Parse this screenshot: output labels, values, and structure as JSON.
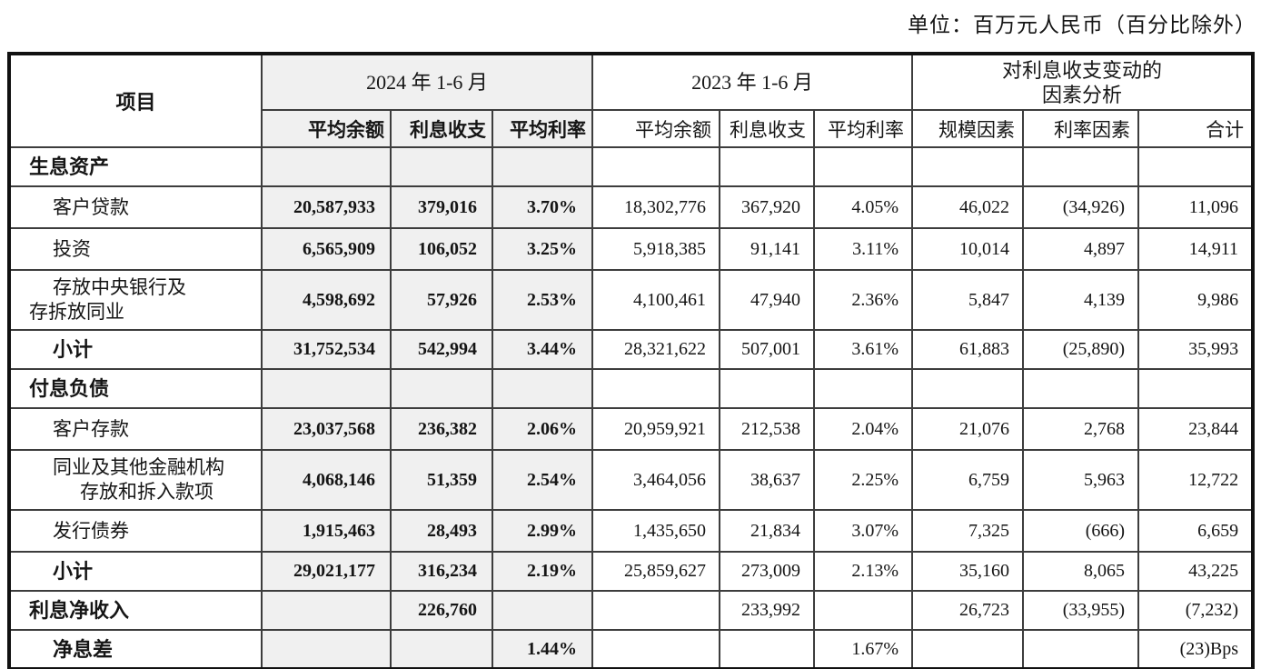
{
  "unit_note": "单位：百万元人民币（百分比除外）",
  "colors": {
    "band_gray": "#f0f0f0",
    "border": "#3d3d3d",
    "outer_border": "#111111"
  },
  "table": {
    "header": {
      "item_label": "项目",
      "groups": [
        {
          "label": "2024 年 1-6 月",
          "cols": [
            "平均余额",
            "利息收支",
            "平均利率"
          ]
        },
        {
          "label": "2023 年 1-6 月",
          "cols": [
            "平均余额",
            "利息收支",
            "平均利率"
          ]
        },
        {
          "label": "对利息收支变动的\n因素分析",
          "cols": [
            "规模因素",
            "利率因素",
            "合计"
          ]
        }
      ]
    },
    "rows": [
      {
        "kind": "section",
        "lines": [
          [
            "生息资产",
            0
          ]
        ],
        "v": [
          "",
          "",
          "",
          "",
          "",
          "",
          "",
          "",
          ""
        ]
      },
      {
        "kind": "item",
        "lines": [
          [
            "客户贷款",
            1
          ]
        ],
        "v": [
          "20,587,933",
          "379,016",
          "3.70%",
          "18,302,776",
          "367,920",
          "4.05%",
          "46,022",
          "(34,926)",
          "11,096"
        ]
      },
      {
        "kind": "item",
        "lines": [
          [
            "投资",
            1
          ]
        ],
        "v": [
          "6,565,909",
          "106,052",
          "3.25%",
          "5,918,385",
          "91,141",
          "3.11%",
          "10,014",
          "4,897",
          "14,911"
        ]
      },
      {
        "kind": "item",
        "lines": [
          [
            "存放中央银行及",
            1
          ],
          [
            "存拆放同业",
            0
          ]
        ],
        "v": [
          "4,598,692",
          "57,926",
          "2.53%",
          "4,100,461",
          "47,940",
          "2.36%",
          "5,847",
          "4,139",
          "9,986"
        ]
      },
      {
        "kind": "subtotal",
        "lines": [
          [
            "小计",
            1
          ]
        ],
        "v": [
          "31,752,534",
          "542,994",
          "3.44%",
          "28,321,622",
          "507,001",
          "3.61%",
          "61,883",
          "(25,890)",
          "35,993"
        ]
      },
      {
        "kind": "section",
        "lines": [
          [
            "付息负债",
            0
          ]
        ],
        "v": [
          "",
          "",
          "",
          "",
          "",
          "",
          "",
          "",
          ""
        ]
      },
      {
        "kind": "item",
        "lines": [
          [
            "客户存款",
            1
          ]
        ],
        "v": [
          "23,037,568",
          "236,382",
          "2.06%",
          "20,959,921",
          "212,538",
          "2.04%",
          "21,076",
          "2,768",
          "23,844"
        ]
      },
      {
        "kind": "item",
        "lines": [
          [
            "同业及其他金融机构",
            1
          ],
          [
            "存放和拆入款项",
            2
          ]
        ],
        "v": [
          "4,068,146",
          "51,359",
          "2.54%",
          "3,464,056",
          "38,637",
          "2.25%",
          "6,759",
          "5,963",
          "12,722"
        ]
      },
      {
        "kind": "item",
        "lines": [
          [
            "发行债券",
            1
          ]
        ],
        "v": [
          "1,915,463",
          "28,493",
          "2.99%",
          "1,435,650",
          "21,834",
          "3.07%",
          "7,325",
          "(666)",
          "6,659"
        ]
      },
      {
        "kind": "subtotal",
        "lines": [
          [
            "小计",
            1
          ]
        ],
        "v": [
          "29,021,177",
          "316,234",
          "2.19%",
          "25,859,627",
          "273,009",
          "2.13%",
          "35,160",
          "8,065",
          "43,225"
        ]
      },
      {
        "kind": "section",
        "lines": [
          [
            "利息净收入",
            0
          ]
        ],
        "v": [
          "",
          "226,760",
          "",
          "",
          "233,992",
          "",
          "26,723",
          "(33,955)",
          "(7,232)"
        ]
      },
      {
        "kind": "subtotal",
        "lines": [
          [
            "净息差",
            1
          ]
        ],
        "v": [
          "",
          "",
          "1.44%",
          "",
          "",
          "1.67%",
          "",
          "",
          "(23)Bps"
        ]
      }
    ]
  }
}
